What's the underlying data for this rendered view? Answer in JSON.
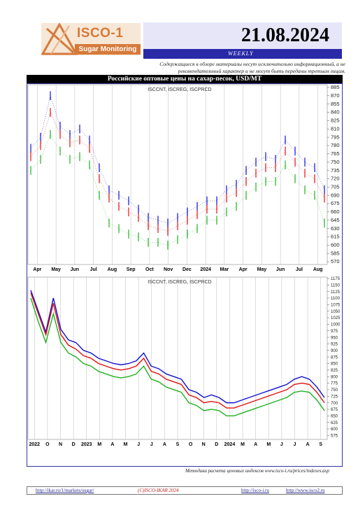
{
  "header": {
    "logo_title": "ISCO-1",
    "logo_subtitle": "Sugar Monitoring",
    "date": "21.08.2024",
    "frequency": "WEEKLY",
    "disclaimer": "Содержащиеся в обзоре материалы несут исключительно информационный, а не рекомендательный характер и не могут быть переданы третьим лицам."
  },
  "chart_title": "Российские оптовые цены на сахар-песок, USD/MT",
  "footer": {
    "method": "Методика расчета ценовых индексов www.isco-i.ru/prices/indexes.asp",
    "link_market": "http://ikar.ru/1/markets/sugar/",
    "copyright": "(C)ISCO-IKAR 2024",
    "link_isco": "http://isco-i.ru",
    "link_isco2": "http://www.isco2.ru"
  },
  "colors": {
    "blue": "#1010d0",
    "red": "#e01010",
    "green": "#20b020",
    "frame": "#3434a0",
    "accent": "#d67a3a"
  },
  "chart_data": [
    {
      "type": "line",
      "chart_style": "ohlc-bars",
      "legend": "ISCCNT, ISCREG, ISCPRCD",
      "x_labels": [
        "Apr",
        "May",
        "Jun",
        "Jul",
        "Aug",
        "Sep",
        "Oct",
        "Nov",
        "Dec",
        "2024",
        "Mar",
        "Apr",
        "May",
        "Jun",
        "Jul",
        "Aug"
      ],
      "y_labels": [
        "885",
        "870",
        "855",
        "840",
        "825",
        "810",
        "795",
        "780",
        "765",
        "750",
        "735",
        "720",
        "705",
        "690",
        "675",
        "660",
        "645",
        "630",
        "615",
        "600",
        "585",
        "570"
      ],
      "ylim": [
        565,
        890
      ],
      "series": [
        {
          "name": "ISCCNT",
          "color": "blue",
          "values": [
            775,
            795,
            870,
            815,
            800,
            810,
            790,
            740,
            700,
            690,
            680,
            665,
            650,
            645,
            640,
            650,
            660,
            670,
            680,
            680,
            700,
            710,
            735,
            750,
            760,
            755,
            790,
            770,
            750,
            740,
            700
          ]
        },
        {
          "name": "ISCREG",
          "color": "red",
          "values": [
            760,
            780,
            840,
            800,
            785,
            790,
            775,
            720,
            685,
            670,
            660,
            650,
            635,
            630,
            625,
            635,
            645,
            655,
            665,
            665,
            685,
            695,
            715,
            730,
            740,
            740,
            770,
            750,
            730,
            720,
            685
          ]
        },
        {
          "name": "ISCPRCD",
          "color": "green",
          "values": [
            735,
            755,
            800,
            770,
            755,
            760,
            745,
            690,
            640,
            630,
            620,
            615,
            605,
            605,
            600,
            610,
            620,
            630,
            645,
            645,
            660,
            670,
            690,
            705,
            715,
            715,
            745,
            720,
            700,
            690,
            640
          ]
        }
      ]
    },
    {
      "type": "line",
      "legend": "ISCCNT, ISCREG, ISCPRCD",
      "x_labels": [
        "2022",
        "O",
        "N",
        "D",
        "2023",
        "M",
        "A",
        "M",
        "J",
        "J",
        "A",
        "S",
        "O",
        "N",
        "D",
        "2024",
        "M",
        "A",
        "M",
        "J",
        "J",
        "A",
        "S"
      ],
      "y_labels": [
        "1175",
        "1150",
        "1125",
        "1100",
        "1075",
        "1050",
        "1025",
        "1000",
        "975",
        "950",
        "925",
        "900",
        "875",
        "850",
        "825",
        "800",
        "775",
        "750",
        "725",
        "700",
        "675",
        "650",
        "625",
        "600",
        "575"
      ],
      "ylim": [
        560,
        1180
      ],
      "series": [
        {
          "name": "ISCCNT",
          "color": "blue",
          "values": [
            1130,
            1050,
            970,
            1100,
            980,
            940,
            930,
            900,
            890,
            870,
            860,
            850,
            845,
            850,
            860,
            890,
            840,
            830,
            810,
            800,
            790,
            750,
            740,
            720,
            730,
            720,
            700,
            700,
            710,
            720,
            730,
            740,
            750,
            760,
            770,
            790,
            800,
            790,
            760,
            720
          ]
        },
        {
          "name": "ISCREG",
          "color": "red",
          "values": [
            1120,
            1040,
            960,
            1080,
            960,
            920,
            905,
            880,
            870,
            850,
            840,
            830,
            825,
            830,
            840,
            870,
            820,
            810,
            790,
            780,
            770,
            730,
            720,
            700,
            705,
            700,
            680,
            680,
            690,
            700,
            710,
            720,
            730,
            740,
            750,
            770,
            775,
            770,
            740,
            700
          ]
        },
        {
          "name": "ISCPRCD",
          "color": "green",
          "values": [
            1100,
            1010,
            930,
            1040,
            930,
            890,
            875,
            850,
            840,
            820,
            810,
            800,
            795,
            800,
            810,
            840,
            790,
            780,
            760,
            750,
            740,
            700,
            690,
            670,
            675,
            670,
            650,
            650,
            660,
            670,
            680,
            690,
            700,
            710,
            720,
            740,
            745,
            740,
            710,
            670
          ]
        }
      ]
    }
  ]
}
